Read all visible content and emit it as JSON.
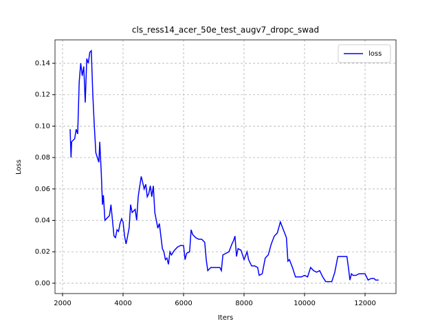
{
  "chart_data": {
    "type": "line",
    "title": "cls_ress14_acer_50e_test_augv7_dropc_swad",
    "x_label": "Iters",
    "y_label": "Loss",
    "x": [
      2250,
      2280,
      2300,
      2400,
      2450,
      2500,
      2550,
      2600,
      2650,
      2700,
      2750,
      2800,
      2850,
      2900,
      2950,
      3000,
      3050,
      3100,
      3150,
      3200,
      3230,
      3280,
      3320,
      3350,
      3400,
      3500,
      3550,
      3600,
      3650,
      3700,
      3750,
      3800,
      3850,
      3900,
      3950,
      4000,
      4050,
      4100,
      4150,
      4200,
      4250,
      4300,
      4400,
      4450,
      4500,
      4600,
      4700,
      4750,
      4800,
      4850,
      4900,
      4950,
      5000,
      5050,
      5100,
      5150,
      5200,
      5250,
      5300,
      5350,
      5400,
      5450,
      5500,
      5550,
      5600,
      5700,
      5800,
      5900,
      6000,
      6050,
      6100,
      6200,
      6250,
      6300,
      6400,
      6500,
      6600,
      6700,
      6750,
      6800,
      6900,
      7000,
      7100,
      7200,
      7250,
      7300,
      7400,
      7500,
      7600,
      7650,
      7700,
      7750,
      7800,
      7900,
      7950,
      8000,
      8100,
      8150,
      8250,
      8350,
      8450,
      8500,
      8600,
      8700,
      8800,
      8900,
      9000,
      9100,
      9200,
      9300,
      9400,
      9450,
      9500,
      9600,
      9700,
      9800,
      9900,
      10000,
      10100,
      10200,
      10300,
      10400,
      10500,
      10600,
      10700,
      10800,
      10900,
      11000,
      11100,
      11200,
      11300,
      11400,
      11450,
      11500,
      11550,
      11600,
      11700,
      11800,
      11900,
      12000,
      12100,
      12200,
      12300,
      12350,
      12450
    ],
    "series": [
      {
        "name": "loss",
        "color": "#0000ff",
        "values": [
          0.098,
          0.08,
          0.09,
          0.092,
          0.098,
          0.095,
          0.128,
          0.14,
          0.132,
          0.138,
          0.115,
          0.143,
          0.14,
          0.147,
          0.148,
          0.12,
          0.1,
          0.083,
          0.08,
          0.077,
          0.09,
          0.07,
          0.05,
          0.056,
          0.04,
          0.042,
          0.043,
          0.05,
          0.04,
          0.03,
          0.029,
          0.034,
          0.033,
          0.038,
          0.041,
          0.039,
          0.03,
          0.025,
          0.03,
          0.035,
          0.05,
          0.045,
          0.047,
          0.04,
          0.055,
          0.068,
          0.06,
          0.063,
          0.055,
          0.057,
          0.062,
          0.055,
          0.062,
          0.045,
          0.04,
          0.035,
          0.038,
          0.03,
          0.022,
          0.02,
          0.015,
          0.016,
          0.012,
          0.02,
          0.018,
          0.021,
          0.023,
          0.024,
          0.024,
          0.015,
          0.019,
          0.02,
          0.034,
          0.031,
          0.029,
          0.028,
          0.028,
          0.026,
          0.015,
          0.008,
          0.01,
          0.01,
          0.01,
          0.01,
          0.008,
          0.018,
          0.019,
          0.02,
          0.025,
          0.027,
          0.03,
          0.017,
          0.022,
          0.021,
          0.018,
          0.015,
          0.02,
          0.015,
          0.011,
          0.011,
          0.01,
          0.005,
          0.006,
          0.016,
          0.018,
          0.025,
          0.03,
          0.032,
          0.039,
          0.034,
          0.029,
          0.014,
          0.015,
          0.01,
          0.004,
          0.004,
          0.004,
          0.005,
          0.004,
          0.01,
          0.008,
          0.007,
          0.008,
          0.004,
          0.001,
          0.001,
          0.001,
          0.007,
          0.017,
          0.017,
          0.017,
          0.017,
          0.01,
          0.002,
          0.006,
          0.005,
          0.005,
          0.006,
          0.006,
          0.006,
          0.002,
          0.003,
          0.003,
          0.002,
          0.002
        ]
      }
    ],
    "xlim": [
      1750,
      13023
    ],
    "ylim": [
      -0.0066,
      0.1549
    ],
    "xticks": [
      2000,
      4000,
      6000,
      8000,
      10000,
      12000
    ],
    "yticks": [
      {
        "value": 0,
        "label": "0.00"
      },
      {
        "value": 0.02,
        "label": "0.02"
      },
      {
        "value": 0.04,
        "label": "0.04"
      },
      {
        "value": 0.06,
        "label": "0.06"
      },
      {
        "value": 0.08,
        "label": "0.08"
      },
      {
        "value": 0.1,
        "label": "0.10"
      },
      {
        "value": 0.12,
        "label": "0.12"
      },
      {
        "value": 0.14,
        "label": "0.14"
      }
    ],
    "grid": true,
    "legend": "upper right"
  }
}
